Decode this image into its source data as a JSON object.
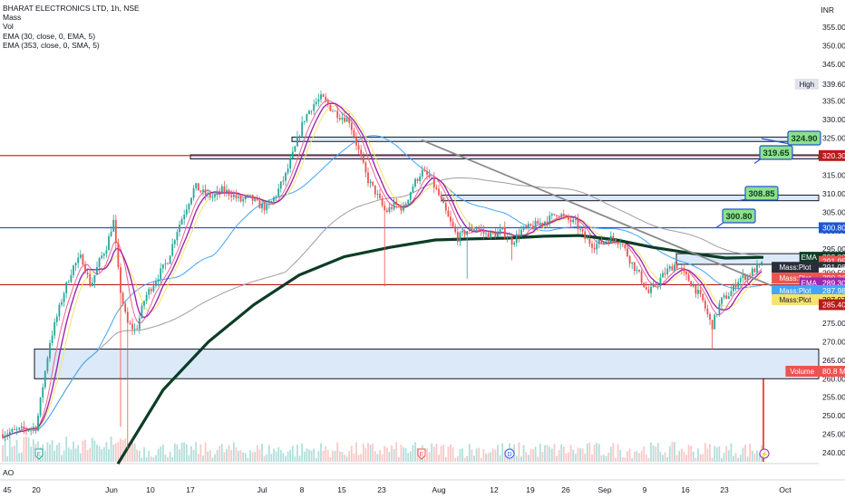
{
  "legend": {
    "symbol": "BHARAT ELECTRONICS LTD, 1h, NSE",
    "line2": "Mass",
    "line3": "Vol",
    "line4": "EMA (30, close, 0, EMA, 5)",
    "line5": "EMA (353, close, 0, SMA, 5)"
  },
  "currency": "INR",
  "ao_label": "AO",
  "colors": {
    "up": "#26a69a",
    "down": "#ef5350",
    "ema_thick": "#0b3d26",
    "ema30": "#42a5f5",
    "sma": "#9e9e9e",
    "mass_magenta": "#9c27b0",
    "mass_red": "#f06292",
    "mass_yellow": "#f7e36b",
    "zone_fill": "#dbe9f8",
    "trendline": "#8a8a8a",
    "hline_red": "#b71c1c",
    "hline_blue": "#1e56d6",
    "callout_fill": "#8fe08a",
    "callout_border": "#1e56d6"
  },
  "chart_data": {
    "type": "candlestick",
    "title": "BHARAT ELECTRONICS LTD, 1h, NSE",
    "ylabel": "INR",
    "ylim": [
      237,
      359
    ],
    "y_ticks": [
      240,
      245,
      250,
      255,
      260,
      265,
      270,
      275,
      280,
      285,
      290,
      295,
      300,
      305,
      310,
      315,
      320,
      325,
      330,
      335,
      340,
      345,
      350,
      355
    ],
    "x_ticks": [
      {
        "label": "Jun",
        "x": 123
      },
      {
        "label": "10",
        "x": 166
      },
      {
        "label": "17",
        "x": 210
      },
      {
        "label": "Jul",
        "x": 289
      },
      {
        "label": "8",
        "x": 333
      },
      {
        "label": "15",
        "x": 377
      },
      {
        "label": "23",
        "x": 421
      },
      {
        "label": "Aug",
        "x": 484
      },
      {
        "label": "12",
        "x": 545
      },
      {
        "label": "19",
        "x": 585
      },
      {
        "label": "26",
        "x": 624
      },
      {
        "label": "Sep",
        "x": 667
      },
      {
        "label": "9",
        "x": 711
      },
      {
        "label": "16",
        "x": 756
      },
      {
        "label": "23",
        "x": 799
      },
      {
        "label": "Oct",
        "x": 866
      }
    ],
    "x_ticks_left": [
      {
        "label": "45",
        "x": 8
      },
      {
        "label": "20",
        "x": 40
      }
    ],
    "price_labels": [
      {
        "text": "High",
        "value": "339.60",
        "price": 339.6,
        "bg": "#ffffff",
        "fg": "#131722",
        "pill": "#e0e3eb"
      },
      {
        "text": "",
        "value": "320.30",
        "price": 320.3,
        "bg": "#b71c1c",
        "fg": "#ffffff"
      },
      {
        "text": "",
        "value": "300.80",
        "price": 300.8,
        "bg": "#1e56d6",
        "fg": "#ffffff"
      },
      {
        "text": "EMA",
        "value": "292.82",
        "price": 292.82,
        "bg": "#0b3d26",
        "fg": "#ffffff"
      },
      {
        "text": "",
        "value": "291.95",
        "price": 291.95,
        "bg": "#ef5350",
        "fg": "#ffffff"
      },
      {
        "text": "Mass:Plot",
        "value": "291.08",
        "price": 291.08,
        "bg": "#2a2e39",
        "fg": "#ffffff"
      },
      {
        "text": "",
        "value": "290.50",
        "price": 290.5,
        "bg": "#ffffff",
        "fg": "#131722"
      },
      {
        "text": "Mass:Plot",
        "value": "290.36",
        "price": 290.36,
        "bg": "#ef5350",
        "fg": "#ffffff"
      },
      {
        "text": "EMA",
        "value": "289.30",
        "price": 289.3,
        "bg": "#9c27b0",
        "fg": "#ffffff"
      },
      {
        "text": "Mass:Plot",
        "value": "287.98",
        "price": 287.98,
        "bg": "#42a5f5",
        "fg": "#ffffff"
      },
      {
        "text": "Mass:Plot",
        "value": "287.97",
        "price": 287.97,
        "bg": "#f7e36b",
        "fg": "#131722"
      },
      {
        "text": "",
        "value": "285.40",
        "price": 285.4,
        "bg": "#b71c1c",
        "fg": "#ffffff"
      },
      {
        "text": "Volume",
        "value": "80.8 M",
        "price": 260.0,
        "bg": "#ef5350",
        "fg": "#ffffff"
      }
    ],
    "callouts": [
      {
        "text": "324.90",
        "price": 324.9
      },
      {
        "text": "319.65",
        "price": 319.65
      },
      {
        "text": "308.85",
        "price": 308.85
      },
      {
        "text": "300.80",
        "price": 300.8
      }
    ],
    "horizontal_lines": [
      {
        "price": 320.3,
        "color": "red"
      },
      {
        "price": 300.8,
        "color": "blue"
      },
      {
        "price": 285.4,
        "color": "red"
      }
    ],
    "zones": [
      {
        "price_top": 325.3,
        "price_bottom": 324.1,
        "x_start_date": "Jul 4"
      },
      {
        "price_top": 320.5,
        "price_bottom": 319.4,
        "x_start_date": "Jun 17"
      },
      {
        "price_top": 309.6,
        "price_bottom": 308.1,
        "x_start_date": "Jul 31"
      },
      {
        "price_top": 293.8,
        "price_bottom": 290.9,
        "x_start_date": "Sep 13"
      },
      {
        "price_top": 268.0,
        "price_bottom": 260.0,
        "x_start_date": "May 20"
      }
    ],
    "event_markers": [
      {
        "label": "E",
        "x": 43,
        "color": "#26a69a"
      },
      {
        "label": "E",
        "x": 465,
        "color": "#ef5350"
      },
      {
        "label": "D",
        "x": 562,
        "color": "#2962ff"
      },
      {
        "label": "⚡",
        "x": 843,
        "color": "#9c27b0"
      }
    ]
  }
}
